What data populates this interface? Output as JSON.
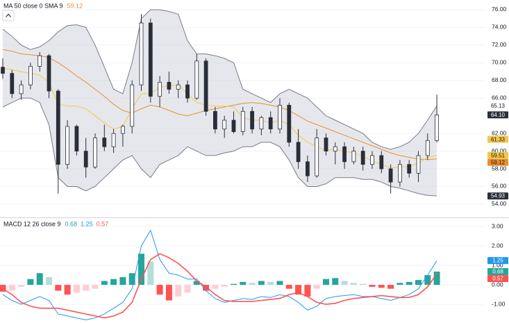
{
  "chart_data": [
    {
      "type": "candlestick",
      "title": "MA 50 close 0 SMA 9",
      "title_values": [
        {
          "text": "59.12",
          "color": "#e8902a"
        }
      ],
      "up_color": "#ffffff",
      "down_color": "#2a2e39",
      "wick_color": "#2a2e39",
      "open": [
        69.5,
        68.8,
        66.5,
        67.5,
        69.6,
        70.8,
        66.8,
        58.5,
        62.8,
        60.0,
        58.2,
        61.5,
        60.5,
        62.0,
        62.8,
        67.5,
        74.5,
        66.2,
        67.8,
        67.0,
        67.5,
        66.0,
        70.2,
        64.5,
        62.5,
        63.5,
        62.2,
        64.5,
        62.5,
        63.8,
        62.5,
        65.2,
        61.0,
        58.8,
        57.2,
        61.5,
        60.0,
        60.5,
        58.8,
        60.0,
        58.5,
        59.5,
        58.0,
        56.5,
        58.5,
        57.5,
        59.5,
        61.2
      ],
      "high": [
        70.5,
        69.2,
        68.0,
        70.0,
        71.2,
        71.0,
        67.0,
        63.5,
        63.0,
        61.5,
        62.0,
        63.0,
        62.5,
        63.0,
        68.0,
        75.5,
        75.0,
        68.5,
        69.0,
        68.0,
        68.0,
        71.0,
        70.5,
        65.0,
        64.0,
        64.5,
        65.0,
        65.0,
        64.0,
        64.5,
        66.0,
        65.5,
        62.5,
        59.5,
        62.5,
        62.0,
        61.0,
        61.0,
        60.5,
        60.5,
        60.0,
        60.0,
        58.5,
        59.0,
        59.0,
        60.0,
        62.0,
        66.4
      ],
      "low": [
        68.2,
        66.0,
        65.8,
        67.0,
        69.0,
        66.0,
        55.2,
        58.0,
        59.5,
        57.0,
        58.0,
        60.0,
        59.8,
        60.5,
        62.0,
        66.8,
        65.5,
        65.0,
        66.5,
        66.0,
        65.5,
        65.8,
        64.0,
        62.0,
        61.5,
        62.0,
        61.8,
        62.0,
        61.8,
        62.0,
        62.0,
        60.5,
        58.0,
        56.5,
        57.0,
        59.5,
        58.5,
        58.0,
        58.5,
        57.8,
        58.0,
        57.5,
        55.2,
        56.0,
        57.0,
        56.5,
        59.0,
        61.0
      ],
      "close": [
        68.8,
        66.5,
        67.5,
        69.6,
        70.8,
        66.8,
        58.5,
        62.8,
        60.0,
        58.2,
        61.5,
        60.5,
        62.0,
        62.8,
        67.5,
        74.5,
        66.2,
        67.8,
        67.0,
        67.5,
        66.0,
        70.2,
        64.5,
        62.5,
        63.5,
        62.2,
        64.5,
        62.5,
        63.8,
        62.5,
        65.2,
        61.0,
        58.8,
        57.2,
        61.5,
        60.0,
        60.5,
        58.8,
        60.0,
        58.5,
        59.5,
        58.0,
        56.5,
        58.5,
        57.5,
        59.5,
        61.2,
        64.1
      ],
      "band": {
        "color": "#787b86",
        "fill": "#d1d4dc",
        "upper": [
          73.8,
          73.0,
          72.0,
          71.5,
          71.8,
          72.5,
          73.5,
          74.2,
          74.3,
          74.0,
          72.0,
          69.5,
          67.0,
          66.5,
          70.0,
          75.0,
          76.0,
          76.0,
          75.8,
          75.5,
          72.5,
          71.0,
          71.0,
          70.8,
          70.5,
          70.0,
          67.0,
          66.5,
          66.0,
          65.5,
          66.5,
          67.0,
          66.5,
          66.0,
          65.0,
          64.0,
          63.5,
          63.0,
          62.5,
          62.0,
          61.0,
          60.5,
          60.2,
          60.5,
          61.0,
          62.0,
          63.5,
          65.13
        ],
        "lower": [
          65.0,
          65.5,
          66.0,
          66.0,
          65.5,
          63.0,
          57.0,
          56.0,
          56.0,
          55.5,
          56.0,
          57.0,
          58.0,
          59.0,
          59.5,
          58.0,
          57.0,
          58.5,
          59.0,
          59.5,
          60.5,
          60.0,
          59.5,
          59.5,
          59.8,
          60.0,
          60.5,
          60.5,
          61.0,
          61.0,
          60.5,
          59.0,
          57.0,
          56.0,
          56.0,
          56.3,
          57.0,
          57.0,
          57.0,
          56.8,
          56.8,
          56.5,
          56.0,
          55.8,
          55.5,
          55.2,
          55.0,
          54.93
        ]
      },
      "overlays": [
        {
          "color": "#e8902a",
          "values": [
            71.5,
            71.3,
            71.0,
            70.9,
            70.8,
            70.6,
            70.0,
            69.3,
            68.5,
            67.8,
            67.0,
            66.2,
            65.3,
            64.6,
            64.3,
            64.8,
            65.2,
            65.0,
            64.6,
            64.2,
            64.0,
            64.3,
            64.6,
            64.8,
            65.0,
            65.2,
            65.4,
            65.5,
            65.4,
            65.2,
            65.0,
            64.6,
            64.0,
            63.4,
            63.0,
            62.6,
            62.2,
            61.8,
            61.4,
            61.0,
            60.6,
            60.2,
            59.8,
            59.5,
            59.3,
            59.1,
            59.05,
            59.12
          ]
        },
        {
          "color": "#f2c94c",
          "values": [
            69.4,
            69.2,
            69.0,
            68.8,
            68.6,
            67.8,
            65.3,
            65.1,
            65.1,
            64.8,
            64.0,
            63.2,
            62.5,
            62.8,
            64.8,
            66.5,
            66.5,
            67.2,
            67.4,
            67.5,
            66.5,
            65.5,
            65.2,
            65.1,
            65.1,
            65.0,
            63.8,
            63.5,
            63.5,
            63.2,
            63.5,
            63.0,
            61.8,
            61.0,
            60.5,
            60.1,
            60.2,
            60.0,
            59.8,
            59.4,
            58.9,
            58.5,
            58.1,
            58.2,
            58.3,
            58.6,
            59.3,
            59.51
          ]
        }
      ],
      "ylim": [
        52.5,
        77.1
      ],
      "yticks": [
        {
          "value": 76,
          "label": "76.00"
        },
        {
          "value": 74,
          "label": "74.00"
        },
        {
          "value": 72,
          "label": "72.00"
        },
        {
          "value": 70,
          "label": "70.00"
        },
        {
          "value": 68,
          "label": "68.00"
        },
        {
          "value": 66,
          "label": "66.00"
        },
        {
          "value": 62,
          "label": "62.00"
        },
        {
          "value": 60,
          "label": "60.00"
        },
        {
          "value": 58,
          "label": "58.00"
        },
        {
          "value": 56,
          "label": "56.00"
        },
        {
          "value": 54,
          "label": "54.00"
        }
      ],
      "grid": true,
      "badges": [
        {
          "value": 65.13,
          "label": "65.13",
          "color": "#ffffff",
          "text_color": "#131722"
        },
        {
          "value": 64.1,
          "label": "64.10",
          "color": "#2a2e39",
          "text_color": "#ffffff"
        },
        {
          "value": 61.33,
          "label": "61.33",
          "color": "#f2c94c",
          "text_color": "#131722"
        },
        {
          "value": 59.51,
          "label": "59.51",
          "color": "#f2c94c",
          "text_color": "#131722"
        },
        {
          "value": 59.12,
          "label": "59.12",
          "color": "#e8902a",
          "text_color": "#131722"
        },
        {
          "value": 54.93,
          "label": "54.93",
          "color": "#2a2e39",
          "text_color": "#ffffff"
        }
      ]
    },
    {
      "type": "macd",
      "title": "MACD 12 26 close 9",
      "title_values": [
        {
          "text": "0.68",
          "color": "#26a69a"
        },
        {
          "text": "1.25",
          "color": "#2196f3"
        },
        {
          "text": "0.57",
          "color": "#ff5252"
        }
      ],
      "histogram": [
        -0.35,
        -0.3,
        -0.1,
        0.3,
        0.6,
        0.4,
        -0.3,
        -0.5,
        -0.4,
        -0.3,
        -0.2,
        0.2,
        0.3,
        0.4,
        0.6,
        1.6,
        1.2,
        -0.5,
        -0.8,
        -0.6,
        -0.4,
        0.2,
        -0.3,
        -0.2,
        -0.1,
        0.05,
        0.15,
        0.1,
        0.2,
        0.15,
        0.2,
        -0.2,
        -0.5,
        -0.6,
        -0.2,
        0.3,
        0.35,
        0.2,
        0.1,
        0.05,
        -0.1,
        -0.15,
        -0.2,
        0.1,
        0.15,
        0.25,
        0.5,
        0.68
      ],
      "histogram_colors": {
        "up": "#26a69a",
        "up_fading": "#b2dfdb",
        "down": "#ff5252",
        "down_fading": "#ffcdd2"
      },
      "series": [
        {
          "color": "#2196f3",
          "values": [
            -0.5,
            -0.8,
            -1.0,
            -0.8,
            -0.6,
            -0.8,
            -1.5,
            -1.6,
            -1.7,
            -1.8,
            -1.7,
            -1.5,
            -1.2,
            -0.9,
            -0.2,
            2.0,
            2.8,
            1.3,
            0.6,
            0.5,
            0.3,
            0.3,
            -0.3,
            -0.7,
            -0.9,
            -0.8,
            -0.7,
            -0.75,
            -0.6,
            -0.65,
            -0.5,
            -0.6,
            -0.9,
            -1.3,
            -1.1,
            -0.7,
            -0.6,
            -0.55,
            -0.5,
            -0.6,
            -0.6,
            -0.7,
            -0.8,
            -0.65,
            -0.5,
            -0.2,
            0.5,
            1.25
          ]
        },
        {
          "color": "#ff5252",
          "values": [
            -0.2,
            -0.5,
            -0.9,
            -1.1,
            -1.2,
            -1.2,
            -1.2,
            -1.3,
            -1.4,
            -1.5,
            -1.6,
            -1.7,
            -1.6,
            -1.4,
            -0.9,
            0.3,
            1.3,
            1.6,
            1.4,
            1.1,
            0.7,
            0.2,
            -0.1,
            -0.5,
            -0.8,
            -0.85,
            -0.85,
            -0.85,
            -0.8,
            -0.75,
            -0.7,
            -0.5,
            -0.4,
            -0.6,
            -0.9,
            -1.0,
            -0.95,
            -0.8,
            -0.7,
            -0.65,
            -0.6,
            -0.55,
            -0.6,
            -0.65,
            -0.65,
            -0.5,
            -0.1,
            0.57
          ]
        }
      ],
      "ylim": [
        -1.96,
        3.43
      ],
      "yticks": [
        {
          "value": 3,
          "label": "3.00"
        },
        {
          "value": 2,
          "label": "2.00"
        },
        {
          "value": 1,
          "label": "1.00"
        },
        {
          "value": 0,
          "label": "0.00"
        },
        {
          "value": -1,
          "label": "-1.00"
        }
      ],
      "grid": true,
      "badges": [
        {
          "value": 1.25,
          "label": "1.25",
          "color": "#2196f3",
          "text_color": "#ffffff"
        },
        {
          "value": 0.68,
          "label": "0.68",
          "color": "#26a69a",
          "text_color": "#ffffff"
        },
        {
          "value": 0.57,
          "label": "0.57",
          "color": "#ff5252",
          "text_color": "#ffffff"
        }
      ]
    }
  ]
}
